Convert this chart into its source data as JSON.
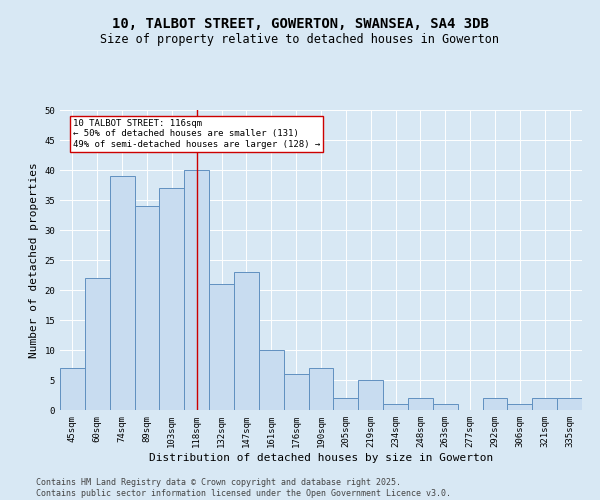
{
  "title": "10, TALBOT STREET, GOWERTON, SWANSEA, SA4 3DB",
  "subtitle": "Size of property relative to detached houses in Gowerton",
  "xlabel": "Distribution of detached houses by size in Gowerton",
  "ylabel": "Number of detached properties",
  "footer_line1": "Contains HM Land Registry data © Crown copyright and database right 2025.",
  "footer_line2": "Contains public sector information licensed under the Open Government Licence v3.0.",
  "categories": [
    "45sqm",
    "60sqm",
    "74sqm",
    "89sqm",
    "103sqm",
    "118sqm",
    "132sqm",
    "147sqm",
    "161sqm",
    "176sqm",
    "190sqm",
    "205sqm",
    "219sqm",
    "234sqm",
    "248sqm",
    "263sqm",
    "277sqm",
    "292sqm",
    "306sqm",
    "321sqm",
    "335sqm"
  ],
  "values": [
    7,
    22,
    39,
    34,
    37,
    40,
    21,
    23,
    10,
    6,
    7,
    2,
    5,
    1,
    2,
    1,
    0,
    2,
    1,
    2,
    2
  ],
  "bar_color": "#c8dcf0",
  "bar_edge_color": "#6090c0",
  "vline_x": 5,
  "vline_color": "#cc0000",
  "annotation_text": "10 TALBOT STREET: 116sqm\n← 50% of detached houses are smaller (131)\n49% of semi-detached houses are larger (128) →",
  "annotation_box_color": "#ffffff",
  "annotation_box_edge": "#cc0000",
  "ylim": [
    0,
    50
  ],
  "yticks": [
    0,
    5,
    10,
    15,
    20,
    25,
    30,
    35,
    40,
    45,
    50
  ],
  "background_color": "#d8e8f4",
  "plot_bg_color": "#d8e8f4",
  "title_fontsize": 10,
  "subtitle_fontsize": 8.5,
  "tick_fontsize": 6.5,
  "label_fontsize": 8,
  "footer_fontsize": 6,
  "annot_fontsize": 6.5
}
